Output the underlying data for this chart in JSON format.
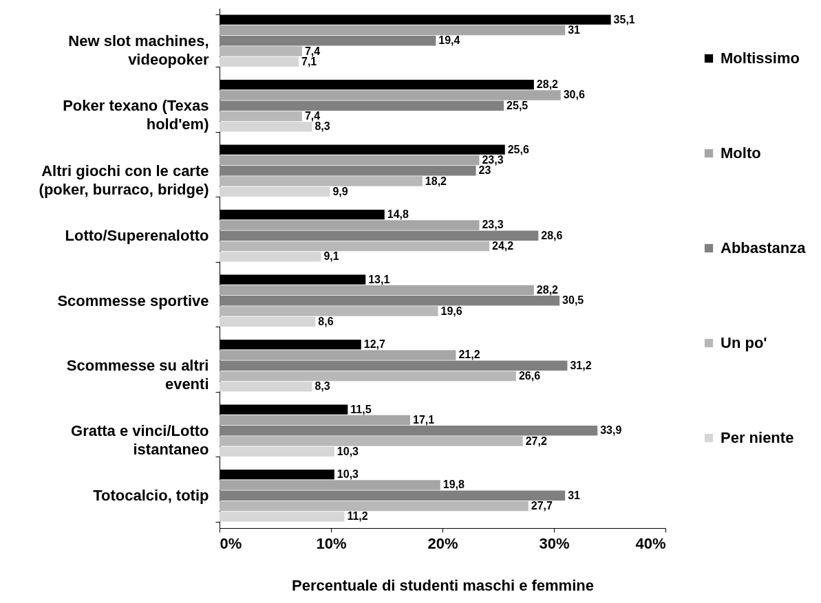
{
  "chart_data": {
    "type": "bar",
    "orientation": "horizontal",
    "xlabel": "Percentuale di studenti maschi e femmine",
    "categories": [
      "New slot machines, videopoker",
      "Poker texano (Texas hold'em)",
      "Altri giochi con le carte (poker, burraco, bridge)",
      "Lotto/Superenalotto",
      "Scommesse sportive",
      "Scommesse su altri eventi",
      "Gratta e vinci/Lotto istantaneo",
      "Totocalcio, totip"
    ],
    "series": [
      {
        "name": "Moltissimo",
        "color": "#000000",
        "values": [
          35.1,
          28.2,
          25.6,
          14.8,
          13.1,
          12.7,
          11.5,
          10.3
        ],
        "value_labels": [
          "35,1",
          "28,2",
          "25,6",
          "14,8",
          "13,1",
          "12,7",
          "11,5",
          "10,3"
        ]
      },
      {
        "name": "Molto",
        "color": "#a6a6a6",
        "values": [
          31,
          30.6,
          23.3,
          23.3,
          28.2,
          21.2,
          17.1,
          19.8
        ],
        "value_labels": [
          "31",
          "30,6",
          "23,3",
          "23,3",
          "28,2",
          "21,2",
          "17,1",
          "19,8"
        ]
      },
      {
        "name": "Abbastanza",
        "color": "#808080",
        "values": [
          19.4,
          25.5,
          23,
          28.6,
          30.5,
          31.2,
          33.9,
          31
        ],
        "value_labels": [
          "19,4",
          "25,5",
          "23",
          "28,6",
          "30,5",
          "31,2",
          "33,9",
          "31"
        ]
      },
      {
        "name": "Un po'",
        "color": "#b8b8b8",
        "values": [
          7.4,
          7.4,
          18.2,
          24.2,
          19.6,
          26.6,
          27.2,
          27.7
        ],
        "value_labels": [
          "7,4",
          "7,4",
          "18,2",
          "24,2",
          "19,6",
          "26,6",
          "27,2",
          "27,7"
        ]
      },
      {
        "name": "Per niente",
        "color": "#d6d6d6",
        "values": [
          7.1,
          8.3,
          9.9,
          9.1,
          8.6,
          8.3,
          10.3,
          11.2
        ],
        "value_labels": [
          "7,1",
          "8,3",
          "9,9",
          "9,1",
          "8,6",
          "8,3",
          "10,3",
          "11,2"
        ]
      }
    ],
    "xlim": [
      0,
      40
    ],
    "xticks": [
      {
        "value": 0,
        "label": "0%"
      },
      {
        "value": 10,
        "label": "10%"
      },
      {
        "value": 20,
        "label": "20%"
      },
      {
        "value": 30,
        "label": "30%"
      },
      {
        "value": 40,
        "label": "40%"
      }
    ],
    "legend": "right"
  }
}
